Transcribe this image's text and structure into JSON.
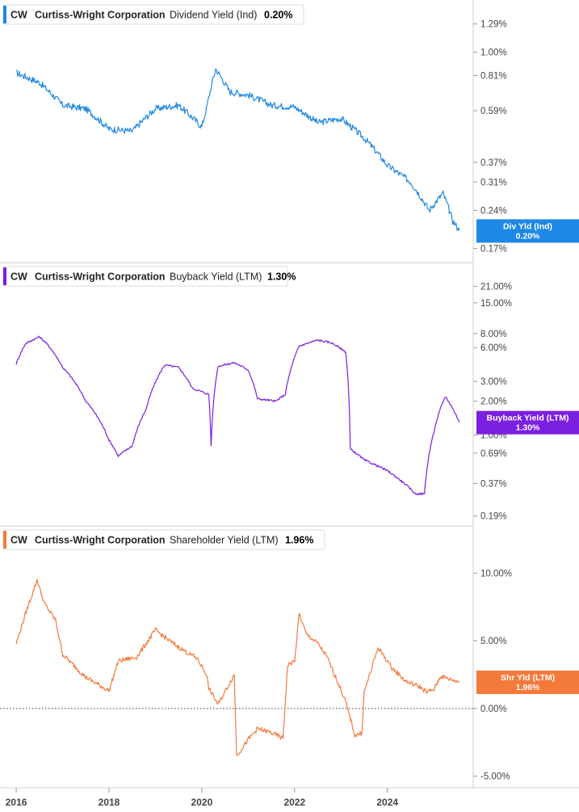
{
  "chart_data": [
    {
      "type": "line",
      "ticker": "CW",
      "company": "Curtiss-Wright Corporation",
      "metric": "Dividend Yield (Ind)",
      "current_value": "0.20%",
      "tag_label": "Div Yld (Ind)",
      "color": "#1e88e5",
      "scale": "log",
      "ylim": [
        0.16,
        1.5
      ],
      "y_ticks": [
        "1.29%",
        "1.00%",
        "0.81%",
        "0.59%",
        "0.37%",
        "0.31%",
        "0.24%",
        "0.17%"
      ],
      "x": [
        2016.0,
        2016.5,
        2017.0,
        2017.5,
        2018.0,
        2018.5,
        2019.0,
        2019.5,
        2020.0,
        2020.1,
        2020.3,
        2020.6,
        2021.0,
        2021.5,
        2022.0,
        2022.5,
        2023.0,
        2023.5,
        2024.0,
        2024.5,
        2024.9,
        2025.2,
        2025.4,
        2025.55
      ],
      "values": [
        0.83,
        0.76,
        0.62,
        0.6,
        0.5,
        0.49,
        0.6,
        0.62,
        0.51,
        0.6,
        0.86,
        0.7,
        0.68,
        0.62,
        0.61,
        0.53,
        0.55,
        0.46,
        0.36,
        0.31,
        0.24,
        0.28,
        0.22,
        0.2
      ]
    },
    {
      "type": "line",
      "ticker": "CW",
      "company": "Curtiss-Wright Corporation",
      "metric": "Buyback Yield (LTM)",
      "current_value": "1.30%",
      "tag_label": "Buyback Yield (LTM)",
      "color": "#7b1fe0",
      "scale": "log",
      "ylim": [
        0.18,
        30
      ],
      "y_ticks": [
        "21.00%",
        "15.00%",
        "8.00%",
        "6.00%",
        "3.00%",
        "2.00%",
        "1.00%",
        "0.69%",
        "0.37%",
        "0.19%"
      ],
      "x": [
        2016.0,
        2016.2,
        2016.5,
        2016.7,
        2017.0,
        2017.5,
        2018.0,
        2018.2,
        2018.5,
        2018.8,
        2019.2,
        2019.5,
        2019.8,
        2020.15,
        2020.2,
        2020.35,
        2020.7,
        2021.0,
        2021.2,
        2021.6,
        2021.8,
        2022.1,
        2022.5,
        2022.8,
        2023.1,
        2023.2,
        2023.5,
        2024.0,
        2024.6,
        2024.8,
        2025.0,
        2025.25,
        2025.55
      ],
      "values": [
        4.3,
        6.5,
        7.5,
        6.2,
        4.0,
        2.0,
        0.9,
        0.65,
        0.8,
        1.7,
        4.2,
        4.0,
        2.6,
        2.3,
        0.8,
        4.1,
        4.4,
        3.8,
        2.1,
        2.0,
        2.3,
        6.2,
        7.0,
        6.6,
        5.5,
        0.75,
        0.6,
        0.48,
        0.3,
        0.3,
        1.05,
        2.2,
        1.3
      ]
    },
    {
      "type": "line",
      "ticker": "CW",
      "company": "Curtiss-Wright Corporation",
      "metric": "Shareholder Yield (LTM)",
      "current_value": "1.96%",
      "tag_label": "Shr Yld (LTM)",
      "color": "#f47a3c",
      "scale": "linear",
      "ylim": [
        -5.5,
        13
      ],
      "y_ticks": [
        "10.00%",
        "5.00%",
        "0.00%",
        "-5.00%"
      ],
      "x": [
        2016.0,
        2016.2,
        2016.45,
        2016.6,
        2016.85,
        2017.0,
        2017.5,
        2018.0,
        2018.2,
        2018.6,
        2019.0,
        2019.3,
        2019.6,
        2019.9,
        2020.1,
        2020.15,
        2020.35,
        2020.7,
        2020.75,
        2021.0,
        2021.2,
        2021.5,
        2021.75,
        2021.85,
        2022.0,
        2022.1,
        2022.25,
        2022.5,
        2022.7,
        2022.9,
        2023.1,
        2023.3,
        2023.45,
        2023.5,
        2023.8,
        2024.1,
        2024.4,
        2024.7,
        2024.85,
        2025.0,
        2025.15,
        2025.3,
        2025.55
      ],
      "values": [
        4.8,
        7.0,
        9.5,
        7.8,
        6.5,
        4.0,
        2.3,
        1.3,
        3.5,
        3.8,
        5.8,
        5.0,
        4.3,
        3.7,
        2.5,
        1.5,
        0.3,
        2.5,
        -3.5,
        -2.3,
        -1.5,
        -1.8,
        -2.2,
        3.2,
        3.5,
        7.0,
        5.5,
        4.8,
        3.8,
        2.2,
        0.5,
        -2.0,
        -1.8,
        1.2,
        4.5,
        3.0,
        2.0,
        1.6,
        1.2,
        1.4,
        2.4,
        2.2,
        1.96
      ],
      "zero_line": true
    }
  ],
  "x_axis": {
    "labels": [
      "2016",
      "2018",
      "2020",
      "2022",
      "2024"
    ],
    "values": [
      2016,
      2018,
      2020,
      2022,
      2024
    ],
    "range": [
      2015.65,
      2025.85
    ]
  }
}
